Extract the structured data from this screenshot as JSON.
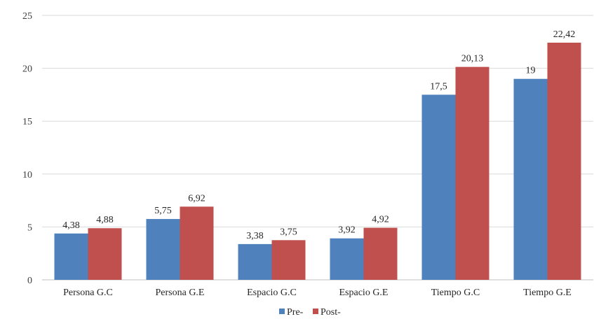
{
  "chart_data": {
    "type": "bar",
    "categories": [
      "Persona G.C",
      "Persona G.E",
      "Espacio G.C",
      "Espacio G.E",
      "Tiempo G.C",
      "Tiempo G.E"
    ],
    "series": [
      {
        "name": "Pre-",
        "color": "#4f81bd",
        "values": [
          4.38,
          5.75,
          3.38,
          3.92,
          17.5,
          19
        ],
        "labels": [
          "4,38",
          "5,75",
          "3,38",
          "3,92",
          "17,5",
          "19"
        ]
      },
      {
        "name": "Post-",
        "color": "#c0504d",
        "values": [
          4.88,
          6.92,
          3.75,
          4.92,
          20.13,
          22.42
        ],
        "labels": [
          "4,88",
          "6,92",
          "3,75",
          "4,92",
          "20,13",
          "22,42"
        ]
      }
    ],
    "title": "",
    "xlabel": "",
    "ylabel": "",
    "ylim": [
      0,
      25
    ],
    "yticks": [
      0,
      5,
      10,
      15,
      20,
      25
    ],
    "grid": true,
    "legend_position": "bottom"
  }
}
